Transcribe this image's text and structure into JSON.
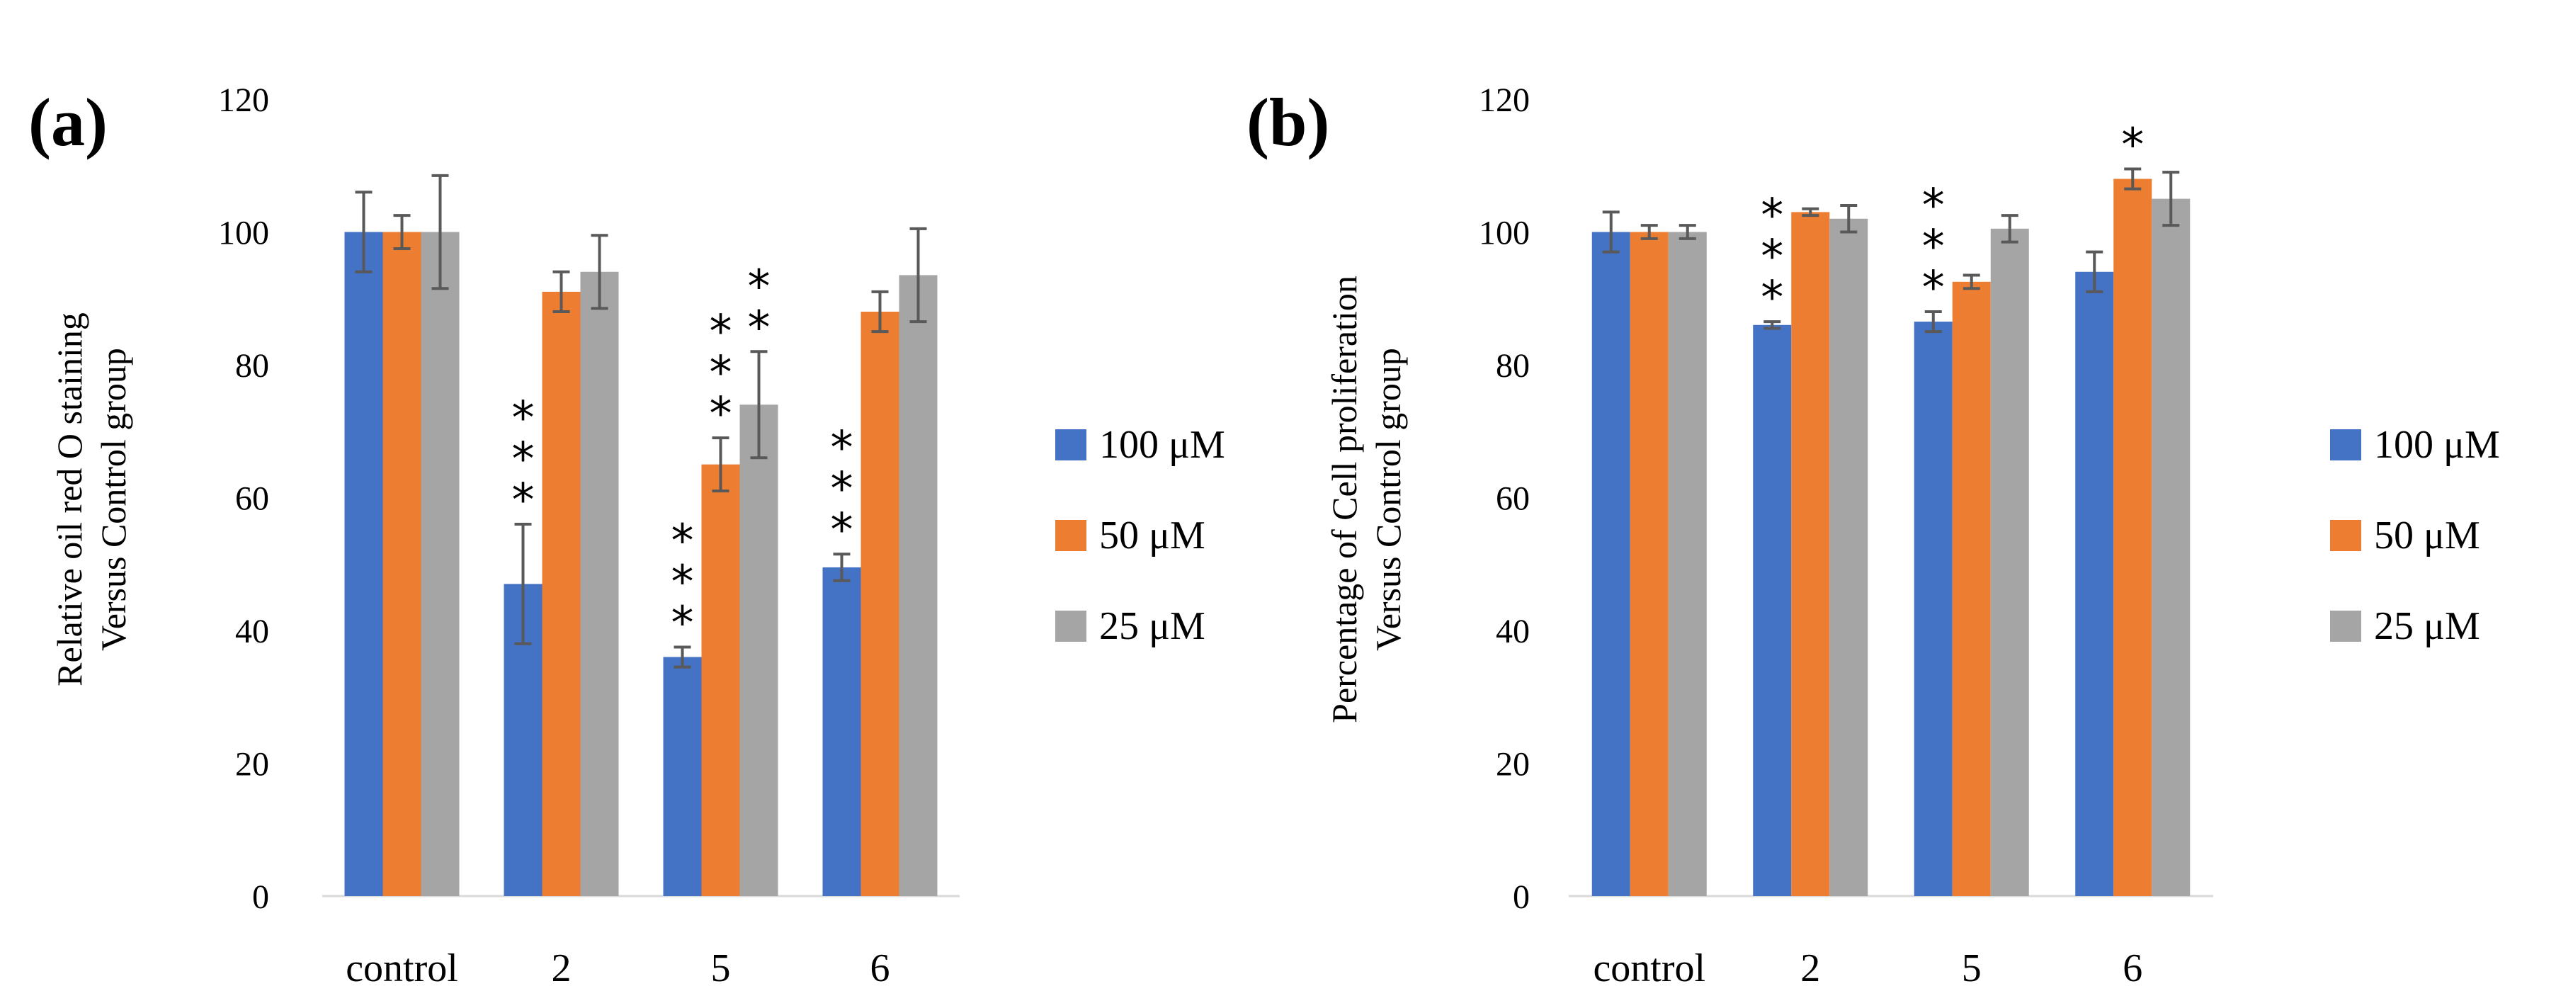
{
  "chart_data": [
    {
      "type": "bar",
      "panel_label": "(a)",
      "ylabel_lines": [
        "Relative oil red O staining",
        "Versus Control group"
      ],
      "categories": [
        "control",
        "2",
        "5",
        "6"
      ],
      "ylim": [
        0,
        120
      ],
      "yticks": [
        0,
        20,
        40,
        60,
        80,
        100,
        120
      ],
      "series": [
        {
          "name": "100 μM",
          "color": "#4472c4",
          "values": [
            100,
            47,
            36,
            49.5
          ],
          "errors": [
            6,
            9,
            1.5,
            2
          ]
        },
        {
          "name": "50 μM",
          "color": "#ed7d31",
          "values": [
            100,
            91,
            65,
            88
          ],
          "errors": [
            2.5,
            3,
            4,
            3
          ]
        },
        {
          "name": "25 μM",
          "color": "#a5a5a5",
          "values": [
            100,
            94,
            74,
            93.5
          ],
          "errors": [
            8.5,
            5.5,
            8,
            7
          ]
        }
      ],
      "annotations": [
        {
          "category": "2",
          "series": "100 μM",
          "label": "***"
        },
        {
          "category": "5",
          "series": "100 μM",
          "label": "***"
        },
        {
          "category": "5",
          "series": "50 μM",
          "label": "***"
        },
        {
          "category": "5",
          "series": "25 μM",
          "label": "**"
        },
        {
          "category": "6",
          "series": "100 μM",
          "label": "***"
        }
      ]
    },
    {
      "type": "bar",
      "panel_label": "(b)",
      "ylabel_lines": [
        "Percentage of Cell proliferation",
        "Versus Control group"
      ],
      "categories": [
        "control",
        "2",
        "5",
        "6"
      ],
      "ylim": [
        0,
        120
      ],
      "yticks": [
        0,
        20,
        40,
        60,
        80,
        100,
        120
      ],
      "series": [
        {
          "name": "100 μM",
          "color": "#4472c4",
          "values": [
            100,
            86,
            86.5,
            94
          ],
          "errors": [
            3,
            0.5,
            1.5,
            3
          ]
        },
        {
          "name": "50 μM",
          "color": "#ed7d31",
          "values": [
            100,
            103,
            92.5,
            108
          ],
          "errors": [
            1,
            0.5,
            1,
            1.5
          ]
        },
        {
          "name": "25 μM",
          "color": "#a5a5a5",
          "values": [
            100,
            102,
            100.5,
            105
          ],
          "errors": [
            1,
            2,
            2,
            4
          ]
        }
      ],
      "annotations": [
        {
          "category": "2",
          "series": "100 μM",
          "label": "***"
        },
        {
          "category": "5",
          "series": "100 μM",
          "label": "***"
        },
        {
          "category": "6",
          "series": "50 μM",
          "label": "*"
        }
      ]
    }
  ]
}
